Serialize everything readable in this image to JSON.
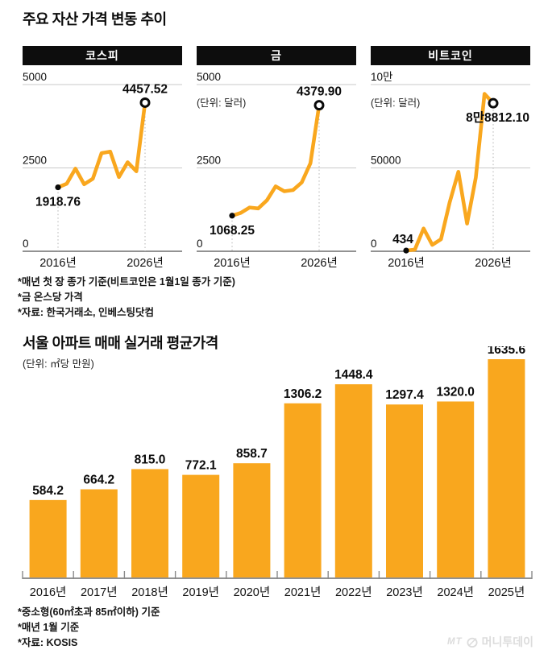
{
  "title": "주요 자산 가격 변동 추이",
  "section2": {
    "title": "서울 아파트 매매 실거래 평균가격",
    "unit": "(단위: ㎡당 만원)"
  },
  "footnotes_top": [
    "*매년 첫 장 종가 기준(비트코인은 1월1일 종가 기준)",
    "*금 온스당 가격",
    "*자료: 한국거래소, 인베스팅닷컴"
  ],
  "footnotes_bottom": [
    "*중소형(60㎡초과 85㎡이하) 기준",
    "*매년 1월 기준",
    "*자료: KOSIS"
  ],
  "logo": {
    "prefix": "MT",
    "name": "머니투데이"
  },
  "colors": {
    "accent": "#F9A71E",
    "header_bg": "#0D0D0D",
    "grid": "#C9C9C9",
    "axis": "#6E6E6E",
    "guide": "#B3B3B3",
    "text": "#111111",
    "label": "#0A0A0A",
    "logo": "#DCDCDC"
  },
  "chart_data": [
    {
      "type": "line",
      "title": "코스피",
      "unit": "",
      "x": [
        2016,
        2017,
        2018,
        2019,
        2020,
        2021,
        2022,
        2023,
        2024,
        2025,
        2026
      ],
      "values": [
        1918.76,
        2026.2,
        2479.7,
        2010.0,
        2175.2,
        2944.5,
        2988.8,
        2225.7,
        2669.8,
        2398.9,
        4457.52
      ],
      "ylim": [
        0,
        5000
      ],
      "yticks": [
        {
          "label": "5000",
          "value": 5000
        },
        {
          "label": "2500",
          "value": 2500
        },
        {
          "label": "0",
          "value": 0
        }
      ],
      "xticks": [
        "2016년",
        "2026년"
      ],
      "start_label": "1918.76",
      "end_label": "4457.52",
      "start_label_pos": "below",
      "end_label_pos": "above"
    },
    {
      "type": "line",
      "title": "금",
      "unit": "(단위: 달러)",
      "x": [
        2016,
        2017,
        2018,
        2019,
        2020,
        2021,
        2022,
        2023,
        2024,
        2025,
        2026
      ],
      "values": [
        1068.25,
        1151.7,
        1312.8,
        1284.7,
        1528.1,
        1946.6,
        1800.1,
        1836.1,
        2063.7,
        2640.0,
        4379.9
      ],
      "ylim": [
        0,
        5000
      ],
      "yticks": [
        {
          "label": "5000",
          "value": 5000
        },
        {
          "label": "2500",
          "value": 2500
        },
        {
          "label": "0",
          "value": 0
        }
      ],
      "xticks": [
        "2016년",
        "2026년"
      ],
      "start_label": "1068.25",
      "end_label": "4379.90",
      "start_label_pos": "below",
      "end_label_pos": "above"
    },
    {
      "type": "line",
      "title": "비트코인",
      "unit": "(단위: 달러)",
      "x": [
        2016,
        2017,
        2018,
        2019,
        2020,
        2021,
        2022,
        2023,
        2024,
        2025,
        2026
      ],
      "values": [
        434,
        1000,
        13650,
        3850,
        7200,
        29370,
        47690,
        16620,
        44170,
        94420,
        88812.1
      ],
      "ylim": [
        0,
        100000
      ],
      "yticks": [
        {
          "label": "10만",
          "value": 100000
        },
        {
          "label": "50000",
          "value": 50000
        },
        {
          "label": "0",
          "value": 0
        }
      ],
      "xticks": [
        "2016년",
        "2026년"
      ],
      "start_label": "434",
      "end_label": "8만8812.10",
      "start_label_pos": "above",
      "end_label_pos": "below-right"
    },
    {
      "type": "bar",
      "title": "서울 아파트 매매 실거래 평균가격",
      "unit": "(단위: ㎡당 만원)",
      "categories": [
        "2016년",
        "2017년",
        "2018년",
        "2019년",
        "2020년",
        "2021년",
        "2022년",
        "2023년",
        "2024년",
        "2025년"
      ],
      "values": [
        584.2,
        664.2,
        815.0,
        772.1,
        858.7,
        1306.2,
        1448.4,
        1297.4,
        1320.0,
        1635.6
      ],
      "value_labels": [
        "584.2",
        "664.2",
        "815.0",
        "772.1",
        "858.7",
        "1306.2",
        "1448.4",
        "1297.4",
        "1320.0",
        "1635.6"
      ],
      "ylim": [
        0,
        1730
      ],
      "grid": false,
      "legend": "none"
    }
  ]
}
